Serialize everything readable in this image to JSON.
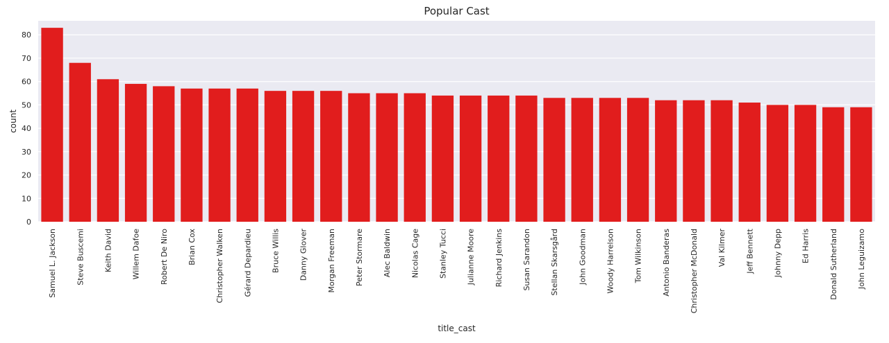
{
  "chart_data": {
    "type": "bar",
    "title": "Popular Cast",
    "xlabel": "title_cast",
    "ylabel": "count",
    "ylim": [
      0,
      86
    ],
    "yticks": [
      0,
      10,
      20,
      30,
      40,
      50,
      60,
      70,
      80
    ],
    "grid": true,
    "bar_color": "#e11d1d",
    "background_color": "#eaeaf2",
    "categories": [
      "Samuel L. Jackson",
      "Steve Buscemi",
      "Keith David",
      "Willem Dafoe",
      "Robert De Niro",
      "Brian Cox",
      "Christopher Walken",
      "Gérard Depardieu",
      "Bruce Willis",
      "Danny Glover",
      "Morgan Freeman",
      "Peter Stormare",
      "Alec Baldwin",
      "Nicolas Cage",
      "Stanley Tucci",
      "Julianne Moore",
      "Richard Jenkins",
      "Susan Sarandon",
      "Stellan Skarsgård",
      "John Goodman",
      "Woody Harrelson",
      "Tom Wilkinson",
      "Antonio Banderas",
      "Christopher McDonald",
      "Val Kilmer",
      "Jeff Bennett",
      "Johnny Depp",
      "Ed Harris",
      "Donald Sutherland",
      "John Leguizamo"
    ],
    "values": [
      83,
      68,
      61,
      59,
      58,
      57,
      57,
      57,
      56,
      56,
      56,
      55,
      55,
      55,
      54,
      54,
      54,
      54,
      53,
      53,
      53,
      53,
      52,
      52,
      52,
      51,
      50,
      50,
      49,
      49
    ]
  }
}
